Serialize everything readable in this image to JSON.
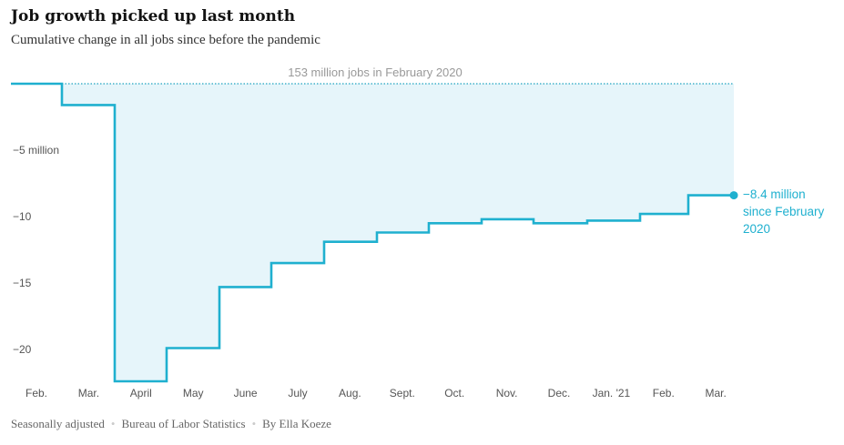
{
  "header": {
    "title": "Job growth picked up last month",
    "subtitle": "Cumulative change in all jobs since before the pandemic"
  },
  "footer": {
    "note": "Seasonally adjusted",
    "source": "Bureau of Labor Statistics",
    "byline": "By Ella Koeze"
  },
  "colors": {
    "line": "#1fb0cf",
    "area": "#e6f5fa",
    "baseline": "#1fa3c0",
    "tick_text": "#555555",
    "annotation_text": "#999999"
  },
  "chart_data": {
    "type": "area",
    "step": true,
    "title": "Job growth picked up last month",
    "subtitle": "Cumulative change in all jobs since before the pandemic",
    "xlabel": "",
    "ylabel": "",
    "categories": [
      "Feb.",
      "Mar.",
      "April",
      "May",
      "June",
      "July",
      "Aug.",
      "Sept.",
      "Oct.",
      "Nov.",
      "Dec.",
      "Jan. '21",
      "Feb.",
      "Mar."
    ],
    "series": [
      {
        "values": [
          0,
          -1.6,
          -22.4,
          -19.9,
          -15.3,
          -13.5,
          -11.9,
          -11.2,
          -10.5,
          -10.2,
          -10.5,
          -10.3,
          -9.8,
          -8.4
        ]
      }
    ],
    "ylim": [
      -23,
      0
    ],
    "y_ticks": [
      {
        "value": -5,
        "label": "−5 million"
      },
      {
        "value": -10,
        "label": "−10"
      },
      {
        "value": -15,
        "label": "−15"
      },
      {
        "value": -20,
        "label": "−20"
      }
    ],
    "baseline_annotation": "153 million jobs in February 2020",
    "end_label": [
      "−8.4 million",
      "since February",
      "2020"
    ],
    "grid": false,
    "legend": "none"
  }
}
